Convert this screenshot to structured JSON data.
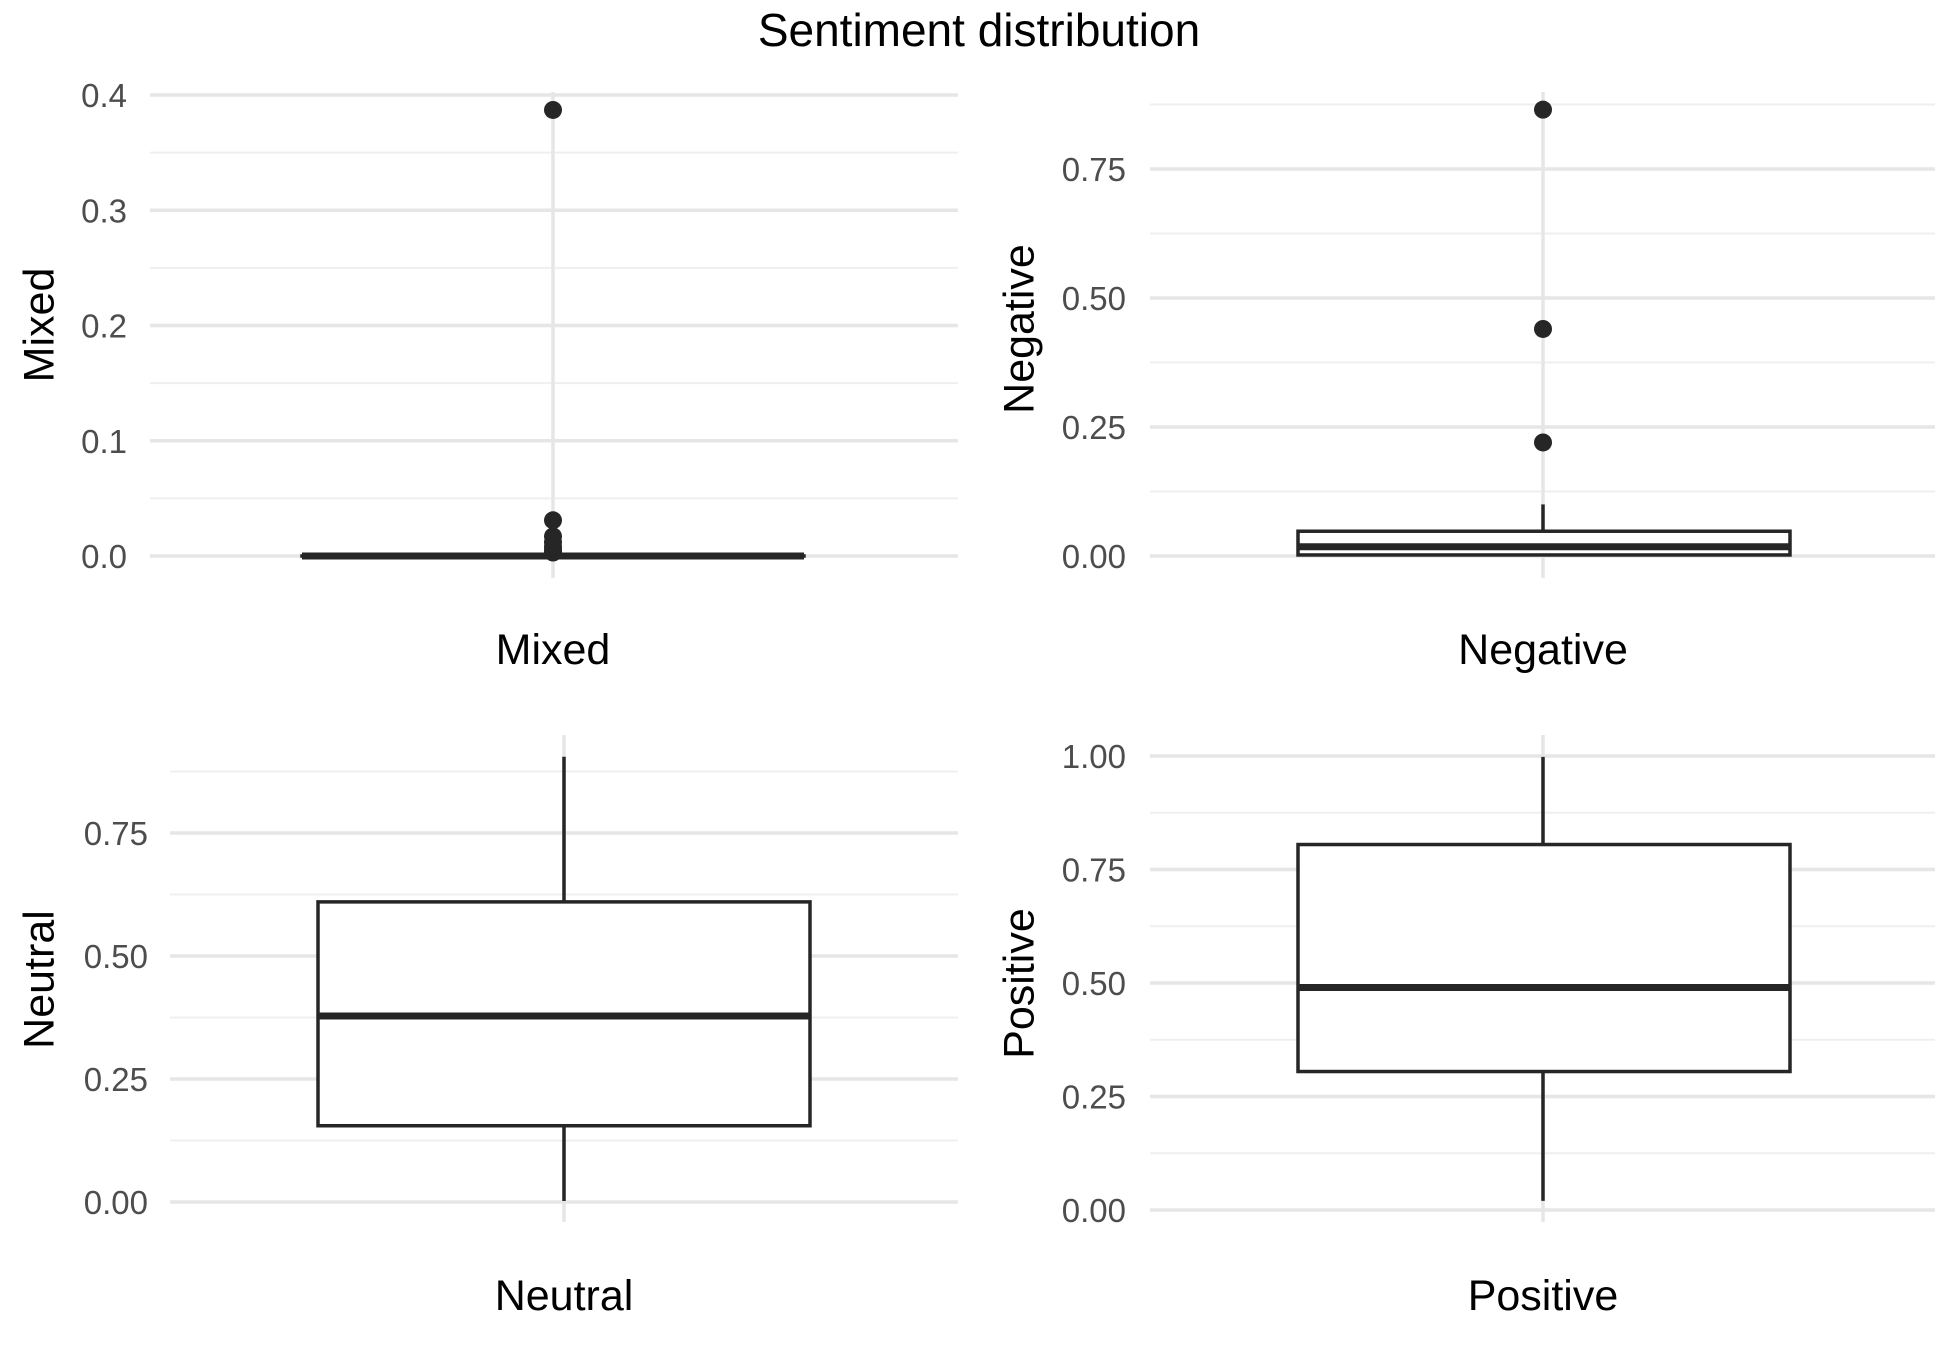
{
  "chart_data": {
    "type": "boxplot",
    "title": "Sentiment distribution",
    "grid": true,
    "colors": {
      "box_fill": "#ffffff",
      "box_stroke": "#262626",
      "grid_major": "#e6e6e6",
      "grid_minor": "#efefef",
      "tick_text": "#4d4d4d"
    },
    "panels": [
      {
        "category": "Mixed",
        "ylabel": "Mixed",
        "xlabel": "Mixed",
        "ylim": [
          -0.01,
          0.4
        ],
        "yticks": [
          0.0,
          0.1,
          0.2,
          0.3,
          0.4
        ],
        "ytick_labels": [
          "0.0",
          "0.1",
          "0.2",
          "0.3",
          "0.4"
        ],
        "box": {
          "min": 0.0,
          "q1": 0.0,
          "median": 0.0,
          "q3": 0.0,
          "max": 0.0
        },
        "outliers": [
          0.387,
          0.031,
          0.017,
          0.012,
          0.008,
          0.005,
          0.003
        ]
      },
      {
        "category": "Negative",
        "ylabel": "Negative",
        "xlabel": "Negative",
        "ylim": [
          -0.05,
          0.88
        ],
        "yticks": [
          0.0,
          0.25,
          0.5,
          0.75
        ],
        "ytick_labels": [
          "0.00",
          "0.25",
          "0.50",
          "0.75"
        ],
        "box": {
          "min": 0.0,
          "q1": 0.002,
          "median": 0.018,
          "q3": 0.048,
          "max": 0.1
        },
        "outliers": [
          0.865,
          0.44,
          0.22
        ]
      },
      {
        "category": "Neutral",
        "ylabel": "Neutral",
        "xlabel": "Neutral",
        "ylim": [
          -0.05,
          0.95
        ],
        "yticks": [
          0.0,
          0.25,
          0.5,
          0.75
        ],
        "ytick_labels": [
          "0.00",
          "0.25",
          "0.50",
          "0.75"
        ],
        "box": {
          "min": 0.002,
          "q1": 0.155,
          "median": 0.378,
          "q3": 0.61,
          "max": 0.905
        },
        "outliers": []
      },
      {
        "category": "Positive",
        "ylabel": "Positive",
        "xlabel": "Positive",
        "ylim": [
          -0.05,
          1.05
        ],
        "yticks": [
          0.0,
          0.25,
          0.5,
          0.75,
          1.0
        ],
        "ytick_labels": [
          "0.00",
          "0.25",
          "0.50",
          "0.75",
          "1.00"
        ],
        "box": {
          "min": 0.02,
          "q1": 0.305,
          "median": 0.49,
          "q3": 0.805,
          "max": 0.998
        },
        "outliers": []
      }
    ]
  }
}
